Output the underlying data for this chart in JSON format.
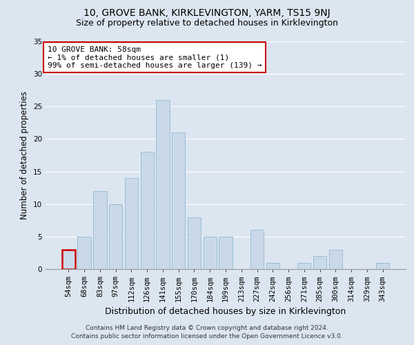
{
  "title1": "10, GROVE BANK, KIRKLEVINGTON, YARM, TS15 9NJ",
  "title2": "Size of property relative to detached houses in Kirklevington",
  "xlabel": "Distribution of detached houses by size in Kirklevington",
  "ylabel": "Number of detached properties",
  "categories": [
    "54sqm",
    "68sqm",
    "83sqm",
    "97sqm",
    "112sqm",
    "126sqm",
    "141sqm",
    "155sqm",
    "170sqm",
    "184sqm",
    "199sqm",
    "213sqm",
    "227sqm",
    "242sqm",
    "256sqm",
    "271sqm",
    "285sqm",
    "300sqm",
    "314sqm",
    "329sqm",
    "343sqm"
  ],
  "values": [
    3,
    5,
    12,
    10,
    14,
    18,
    26,
    21,
    8,
    5,
    5,
    0,
    6,
    1,
    0,
    1,
    2,
    3,
    0,
    0,
    1
  ],
  "bar_color": "#c9d9ea",
  "bar_edge_color": "#9bbdd4",
  "highlight_bar_index": 0,
  "highlight_bar_edge_color": "#cc0000",
  "annotation_text": "10 GROVE BANK: 58sqm\n← 1% of detached houses are smaller (1)\n99% of semi-detached houses are larger (139) →",
  "annotation_box_color": "#ffffff",
  "annotation_box_edge_color": "#cc0000",
  "bg_color": "#dce6f0",
  "plot_bg_color": "#dce6f0",
  "ylim": [
    0,
    35
  ],
  "yticks": [
    0,
    5,
    10,
    15,
    20,
    25,
    30,
    35
  ],
  "footer1": "Contains HM Land Registry data © Crown copyright and database right 2024.",
  "footer2": "Contains public sector information licensed under the Open Government Licence v3.0.",
  "title1_fontsize": 10,
  "title2_fontsize": 9,
  "xlabel_fontsize": 9,
  "ylabel_fontsize": 8.5,
  "tick_fontsize": 7.5,
  "annotation_fontsize": 8,
  "footer_fontsize": 6.5
}
